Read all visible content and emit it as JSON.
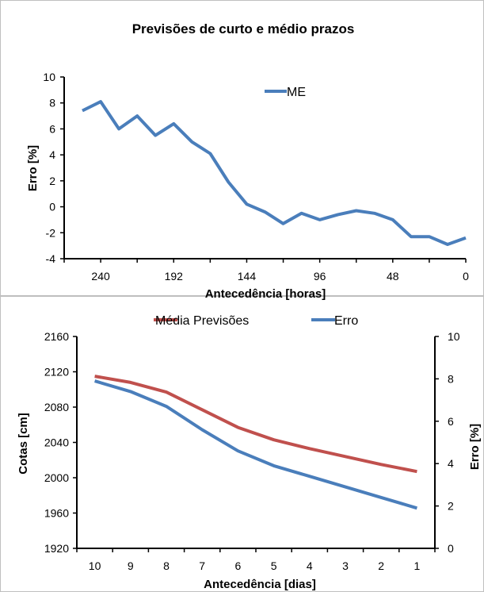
{
  "chart_data": [
    {
      "type": "line",
      "title": "Previsões de curto e médio prazos",
      "xlabel": "Antecedência [horas]",
      "ylabel": "Erro [%]",
      "x_reversed": true,
      "xlim": [
        0,
        264
      ],
      "ylim": [
        -4,
        10
      ],
      "x_ticks": [
        "240",
        "192",
        "144",
        "96",
        "48",
        "0"
      ],
      "y_ticks": [
        "10",
        "8",
        "6",
        "4",
        "2",
        "0",
        "-2",
        "-4"
      ],
      "grid": false,
      "legend_position": "top-right",
      "series": [
        {
          "name": "ME",
          "color": "#4a7ebb",
          "x": [
            252,
            240,
            228,
            216,
            204,
            192,
            180,
            168,
            156,
            144,
            132,
            120,
            108,
            96,
            84,
            72,
            60,
            48,
            36,
            24,
            12,
            0
          ],
          "y": [
            7.4,
            8.1,
            6.0,
            7.0,
            5.5,
            6.4,
            5.0,
            4.1,
            1.9,
            0.2,
            -0.4,
            -1.3,
            -0.5,
            -1.0,
            -0.6,
            -0.3,
            -0.5,
            -1.0,
            -2.3,
            -2.3,
            -2.9,
            -2.4
          ]
        }
      ]
    },
    {
      "type": "line",
      "title": "",
      "xlabel": "Antecedência [dias]",
      "ylabel": "Cotas [cm]",
      "y2label": "Erro [%]",
      "categories": [
        "10",
        "9",
        "8",
        "7",
        "6",
        "5",
        "4",
        "3",
        "2",
        "1"
      ],
      "ylim": [
        1920,
        2160
      ],
      "y2lim": [
        0,
        10
      ],
      "y_ticks": [
        "2160",
        "2120",
        "2080",
        "2040",
        "2000",
        "1960",
        "1920"
      ],
      "y2_ticks": [
        "10",
        "8",
        "6",
        "4",
        "2",
        "0"
      ],
      "grid": false,
      "legend_position": "top",
      "series": [
        {
          "name": "Média Previsões",
          "color": "#c0504d",
          "axis": "left",
          "values": [
            2115,
            2108,
            2097,
            2077,
            2057,
            2043,
            2033,
            2024,
            2015,
            2007
          ]
        },
        {
          "name": "Erro",
          "color": "#4a7ebb",
          "axis": "right",
          "values": [
            7.9,
            7.4,
            6.7,
            5.6,
            4.6,
            3.9,
            3.4,
            2.9,
            2.4,
            1.9
          ]
        }
      ]
    }
  ]
}
